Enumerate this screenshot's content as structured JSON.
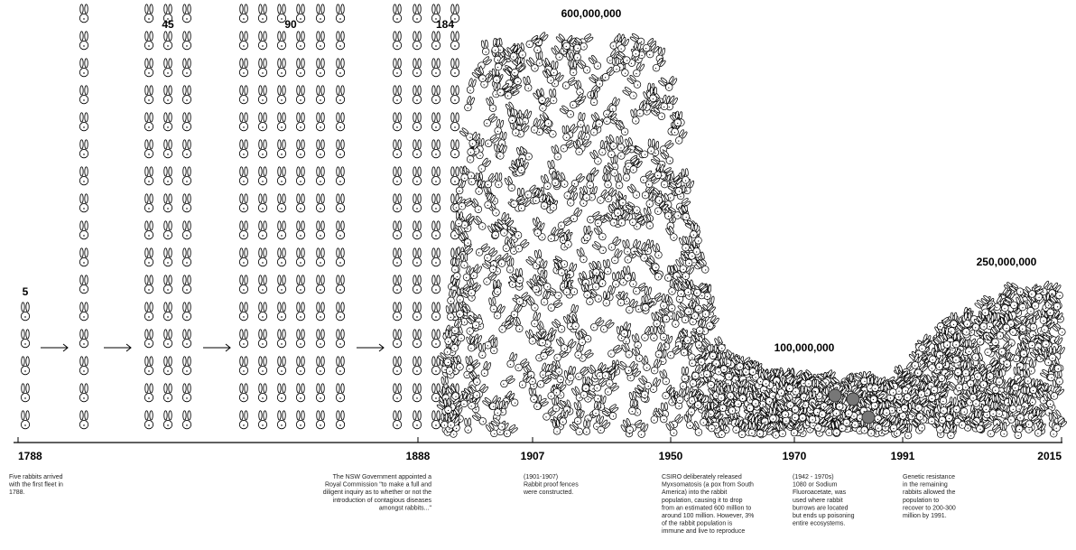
{
  "counts": [
    "5",
    "45",
    "90",
    "184",
    "600,000,000",
    "100,000,000",
    "250,000,000"
  ],
  "timeline": [
    {
      "year": "1788",
      "note": [
        "Five rabbits arrived",
        "with the first fleet in",
        "1788."
      ]
    },
    {
      "year": "1888",
      "note": [
        "The NSW Government appointed a",
        "Royal Commission \"to make a full and",
        "diligent inquiry as to whether or not the",
        "introduction of contagious diseases",
        "amongst rabbits...\""
      ]
    },
    {
      "year": "1907",
      "note": [
        "(1901-1907)",
        "Rabbit proof fences",
        "were constructed."
      ]
    },
    {
      "year": "1950",
      "note": [
        "CSIRO deliberately released",
        "Myxsomatosis (a pox from South",
        "America) into the rabbit",
        "population, causing it to drop",
        "from an estimated 600 million to",
        "around 100 million. However, 3%",
        "of the rabbit population is",
        "immune and live to reproduce"
      ]
    },
    {
      "year": "1970",
      "note": [
        "(1942 - 1970s)",
        "1080 or Sodium",
        "Fluoroacetate, was",
        "used  where rabbit",
        "burrows are located",
        "but ends up poisoning",
        "entire ecosystems."
      ]
    },
    {
      "year": "1991",
      "note": [
        "Genetic resistance",
        "in the remaining",
        "rabbits allowed the",
        "population to",
        "recover to 200-300",
        "million by 1991."
      ]
    },
    {
      "year": "2015"
    }
  ]
}
